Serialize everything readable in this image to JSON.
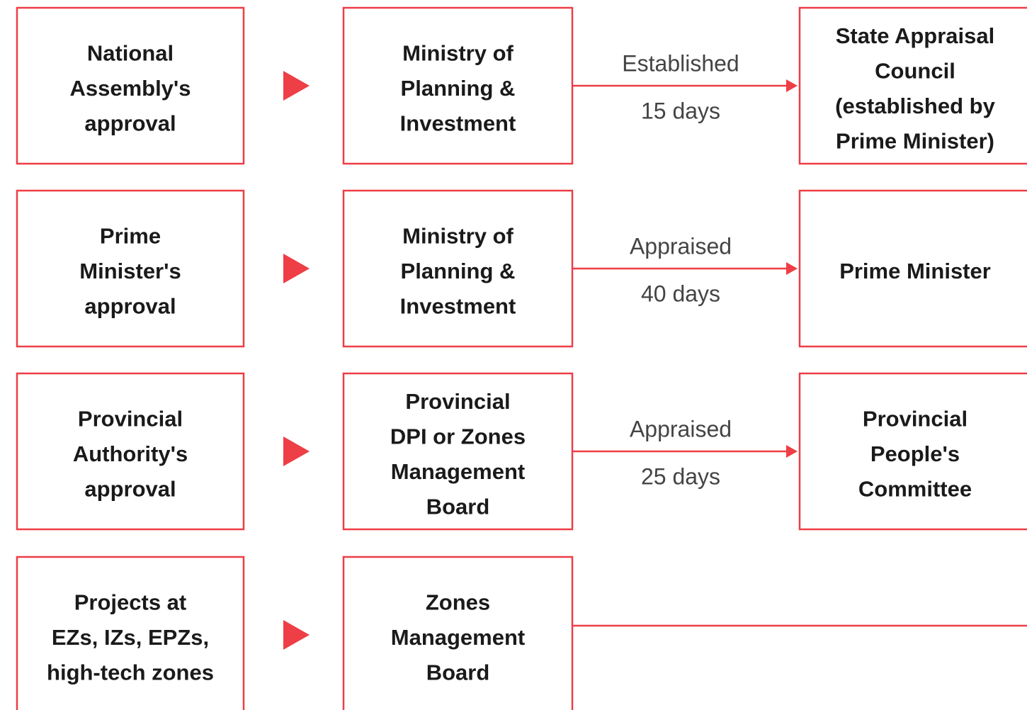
{
  "rows": [
    {
      "source": [
        "National",
        "Assembly's",
        "approval"
      ],
      "agency": [
        "Ministry of",
        "Planning &",
        "Investment"
      ],
      "action": "Established",
      "duration": "15 days",
      "target": [
        "State Appraisal",
        "Council",
        "(established by",
        "Prime Minister)"
      ]
    },
    {
      "source": [
        "Prime",
        "Minister's",
        "approval"
      ],
      "agency": [
        "Ministry of",
        "Planning &",
        "Investment"
      ],
      "action": "Appraised",
      "duration": "40 days",
      "target": [
        "Prime Minister"
      ]
    },
    {
      "source": [
        "Provincial",
        "Authority's",
        "approval"
      ],
      "agency": [
        "Provincial",
        "DPI or Zones",
        "Management",
        "Board"
      ],
      "action": "Appraised",
      "duration": "25 days",
      "target": [
        "Provincial",
        "People's",
        "Committee"
      ]
    },
    {
      "source": [
        "Projects at",
        "EZs, IZs, EPZs,",
        "high-tech zones"
      ],
      "agency": [
        "Zones",
        "Management",
        "Board"
      ]
    }
  ]
}
